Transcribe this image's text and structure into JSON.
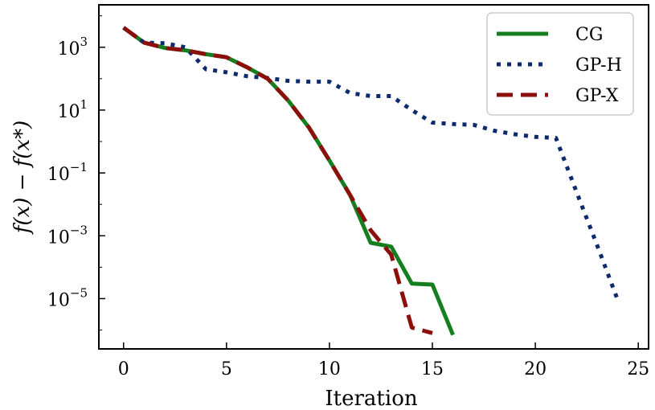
{
  "chart_data": {
    "type": "line",
    "xlabel": "Iteration",
    "ylabel": "f(x) − f(x*)",
    "xlim": [
      -1.2,
      25.5
    ],
    "ylim_log10": [
      -6.6,
      4.35
    ],
    "yscale": "log",
    "grid": false,
    "legend_position": "top-right",
    "xticks": [
      {
        "value": 0,
        "label": "0"
      },
      {
        "value": 5,
        "label": "5"
      },
      {
        "value": 10,
        "label": "10"
      },
      {
        "value": 15,
        "label": "15"
      },
      {
        "value": 20,
        "label": "20"
      },
      {
        "value": 25,
        "label": "25"
      }
    ],
    "yticks": [
      {
        "exp": 3,
        "base": "10",
        "sup": "3"
      },
      {
        "exp": 1,
        "base": "10",
        "sup": "1"
      },
      {
        "exp": -1,
        "base": "10",
        "sup": "−1"
      },
      {
        "exp": -3,
        "base": "10",
        "sup": "−3"
      },
      {
        "exp": -5,
        "base": "10",
        "sup": "−5"
      }
    ],
    "series": [
      {
        "name": "CG",
        "color": "#157f1f",
        "style": "solid",
        "x": [
          0,
          1,
          2,
          3,
          4,
          5,
          6,
          7,
          8,
          9,
          10,
          11,
          12,
          13,
          14,
          15,
          16
        ],
        "y": [
          4200,
          1400,
          950,
          800,
          600,
          480,
          230,
          100,
          20,
          2.8,
          0.25,
          0.02,
          0.0006,
          0.00045,
          3e-05,
          2.8e-05,
          7e-07
        ]
      },
      {
        "name": "GP-H",
        "color": "#0e2a6e",
        "style": "dotted",
        "x": [
          0,
          1,
          2,
          3,
          4,
          5,
          6,
          7,
          8,
          9,
          10,
          11,
          12,
          13,
          14,
          15,
          16,
          17,
          18,
          19,
          20,
          21,
          22,
          23,
          24
        ],
        "y": [
          4200,
          1400,
          1350,
          1000,
          200,
          160,
          120,
          105,
          85,
          80,
          80,
          35,
          28,
          28,
          10,
          4,
          3.6,
          3.4,
          2.2,
          1.7,
          1.4,
          1.3,
          0.025,
          0.0005,
          9e-06
        ]
      },
      {
        "name": "GP-X",
        "color": "#8b0f0a",
        "style": "dashed",
        "x": [
          0,
          1,
          2,
          3,
          4,
          5,
          6,
          7,
          8,
          9,
          10,
          11,
          12,
          13,
          14,
          15
        ],
        "y": [
          4200,
          1400,
          950,
          800,
          600,
          480,
          230,
          100,
          20,
          2.8,
          0.25,
          0.02,
          0.0015,
          0.00025,
          1.2e-06,
          8e-07
        ]
      }
    ]
  }
}
